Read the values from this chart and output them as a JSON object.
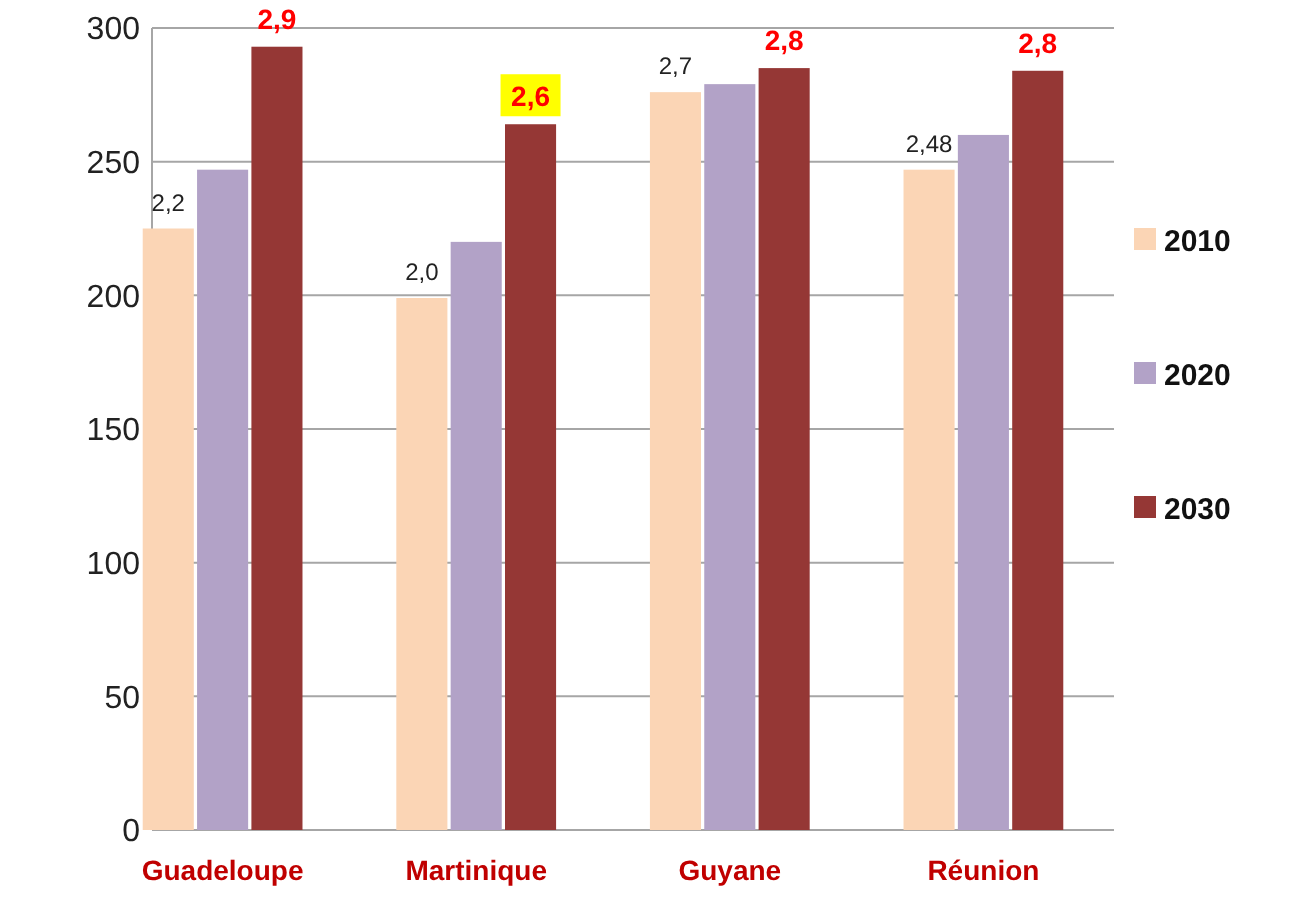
{
  "chart_data": {
    "type": "bar",
    "categories": [
      "Guadeloupe",
      "Martinique",
      "Guyane",
      "Réunion"
    ],
    "series": [
      {
        "name": "2010",
        "color": "#fbd5b5",
        "values": [
          225,
          199,
          276,
          247
        ]
      },
      {
        "name": "2020",
        "color": "#b2a2c7",
        "values": [
          247,
          220,
          279,
          260
        ]
      },
      {
        "name": "2030",
        "color": "#953735",
        "values": [
          293,
          264,
          285,
          284
        ]
      }
    ],
    "ylim": [
      0,
      300
    ],
    "yticks": [
      0,
      50,
      100,
      150,
      200,
      250,
      300
    ],
    "grid": "y",
    "legend": "right",
    "annotations": [
      "2,2",
      "2,9",
      "2,0",
      "2,6",
      "2,7",
      "2,8",
      "2,48",
      "2,8"
    ]
  }
}
